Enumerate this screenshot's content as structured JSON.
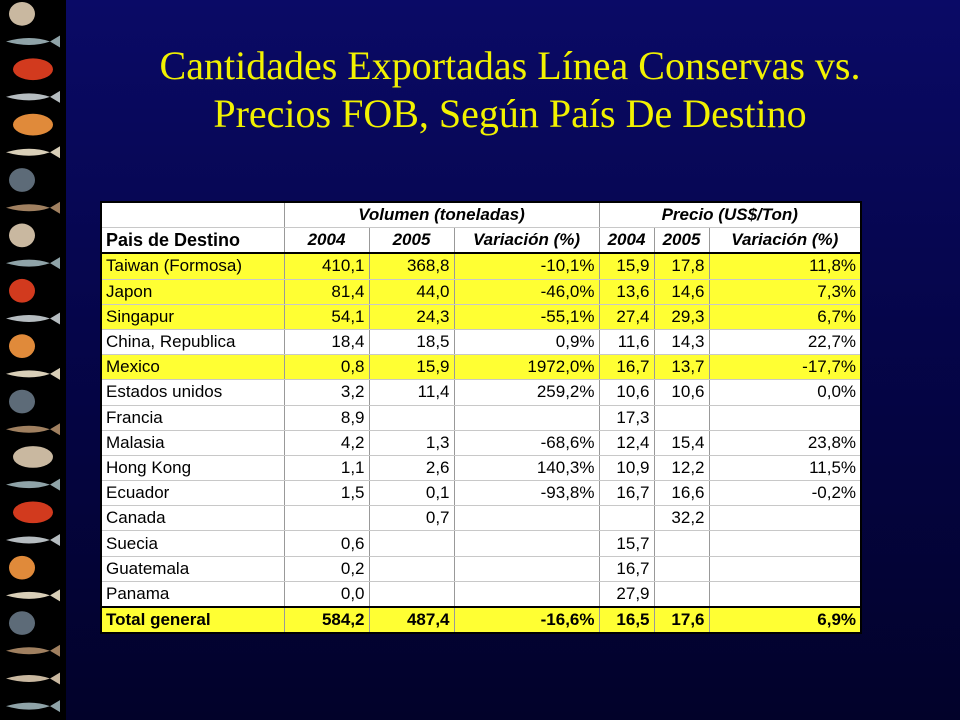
{
  "title": {
    "line1": "Cantidades Exportadas Línea Conservas vs.",
    "line2": "Precios FOB, Según País De Destino"
  },
  "table": {
    "country_header": "Pais de Destino",
    "group_volume": "Volumen (toneladas)",
    "group_price": "Precio (US$/Ton)",
    "col_2004": "2004",
    "col_2005": "2005",
    "col_var": "Variación (%)",
    "rows": [
      {
        "country": "Taiwan (Formosa)",
        "v2004": "410,1",
        "v2005": "368,8",
        "vvar": "-10,1%",
        "p2004": "15,9",
        "p2005": "17,8",
        "pvar": "11,8%",
        "highlight": true
      },
      {
        "country": "Japon",
        "v2004": "81,4",
        "v2005": "44,0",
        "vvar": "-46,0%",
        "p2004": "13,6",
        "p2005": "14,6",
        "pvar": "7,3%",
        "highlight": true
      },
      {
        "country": "Singapur",
        "v2004": "54,1",
        "v2005": "24,3",
        "vvar": "-55,1%",
        "p2004": "27,4",
        "p2005": "29,3",
        "pvar": "6,7%",
        "highlight": true
      },
      {
        "country": "China, Republica",
        "v2004": "18,4",
        "v2005": "18,5",
        "vvar": "0,9%",
        "p2004": "11,6",
        "p2005": "14,3",
        "pvar": "22,7%",
        "highlight": false
      },
      {
        "country": "Mexico",
        "v2004": "0,8",
        "v2005": "15,9",
        "vvar": "1972,0%",
        "p2004": "16,7",
        "p2005": "13,7",
        "pvar": "-17,7%",
        "highlight": true
      },
      {
        "country": "Estados unidos",
        "v2004": "3,2",
        "v2005": "11,4",
        "vvar": "259,2%",
        "p2004": "10,6",
        "p2005": "10,6",
        "pvar": "0,0%",
        "highlight": false
      },
      {
        "country": "Francia",
        "v2004": "8,9",
        "v2005": "",
        "vvar": "",
        "p2004": "17,3",
        "p2005": "",
        "pvar": "",
        "highlight": false
      },
      {
        "country": "Malasia",
        "v2004": "4,2",
        "v2005": "1,3",
        "vvar": "-68,6%",
        "p2004": "12,4",
        "p2005": "15,4",
        "pvar": "23,8%",
        "highlight": false
      },
      {
        "country": "Hong Kong",
        "v2004": "1,1",
        "v2005": "2,6",
        "vvar": "140,3%",
        "p2004": "10,9",
        "p2005": "12,2",
        "pvar": "11,5%",
        "highlight": false
      },
      {
        "country": "Ecuador",
        "v2004": "1,5",
        "v2005": "0,1",
        "vvar": "-93,8%",
        "p2004": "16,7",
        "p2005": "16,6",
        "pvar": "-0,2%",
        "highlight": false
      },
      {
        "country": "Canada",
        "v2004": "",
        "v2005": "0,7",
        "vvar": "",
        "p2004": "",
        "p2005": "32,2",
        "pvar": "",
        "highlight": false
      },
      {
        "country": "Suecia",
        "v2004": "0,6",
        "v2005": "",
        "vvar": "",
        "p2004": "15,7",
        "p2005": "",
        "pvar": "",
        "highlight": false
      },
      {
        "country": "Guatemala",
        "v2004": "0,2",
        "v2005": "",
        "vvar": "",
        "p2004": "16,7",
        "p2005": "",
        "pvar": "",
        "highlight": false
      },
      {
        "country": "Panama",
        "v2004": "0,0",
        "v2005": "",
        "vvar": "",
        "p2004": "27,9",
        "p2005": "",
        "pvar": "",
        "highlight": false
      }
    ],
    "total": {
      "country": "Total general",
      "v2004": "584,2",
      "v2005": "487,4",
      "vvar": "-16,6%",
      "p2004": "16,5",
      "p2005": "17,6",
      "pvar": "6,9%"
    }
  },
  "sidebar_icons": [
    "shell-icon",
    "fish-icon",
    "crab-icon",
    "fish-icon",
    "crab-icon",
    "fish-icon",
    "shell-icon",
    "fish-icon",
    "shell-icon",
    "fish-icon",
    "oyster-icon",
    "fish-icon",
    "mussel-icon",
    "fish-icon",
    "snail-icon",
    "shrimp-icon",
    "urchin-icon",
    "fish-icon",
    "crab-icon",
    "fish-icon",
    "clam-icon",
    "fish-icon",
    "shell-icon",
    "fish-icon",
    "shrimp-icon",
    "fish-icon"
  ]
}
